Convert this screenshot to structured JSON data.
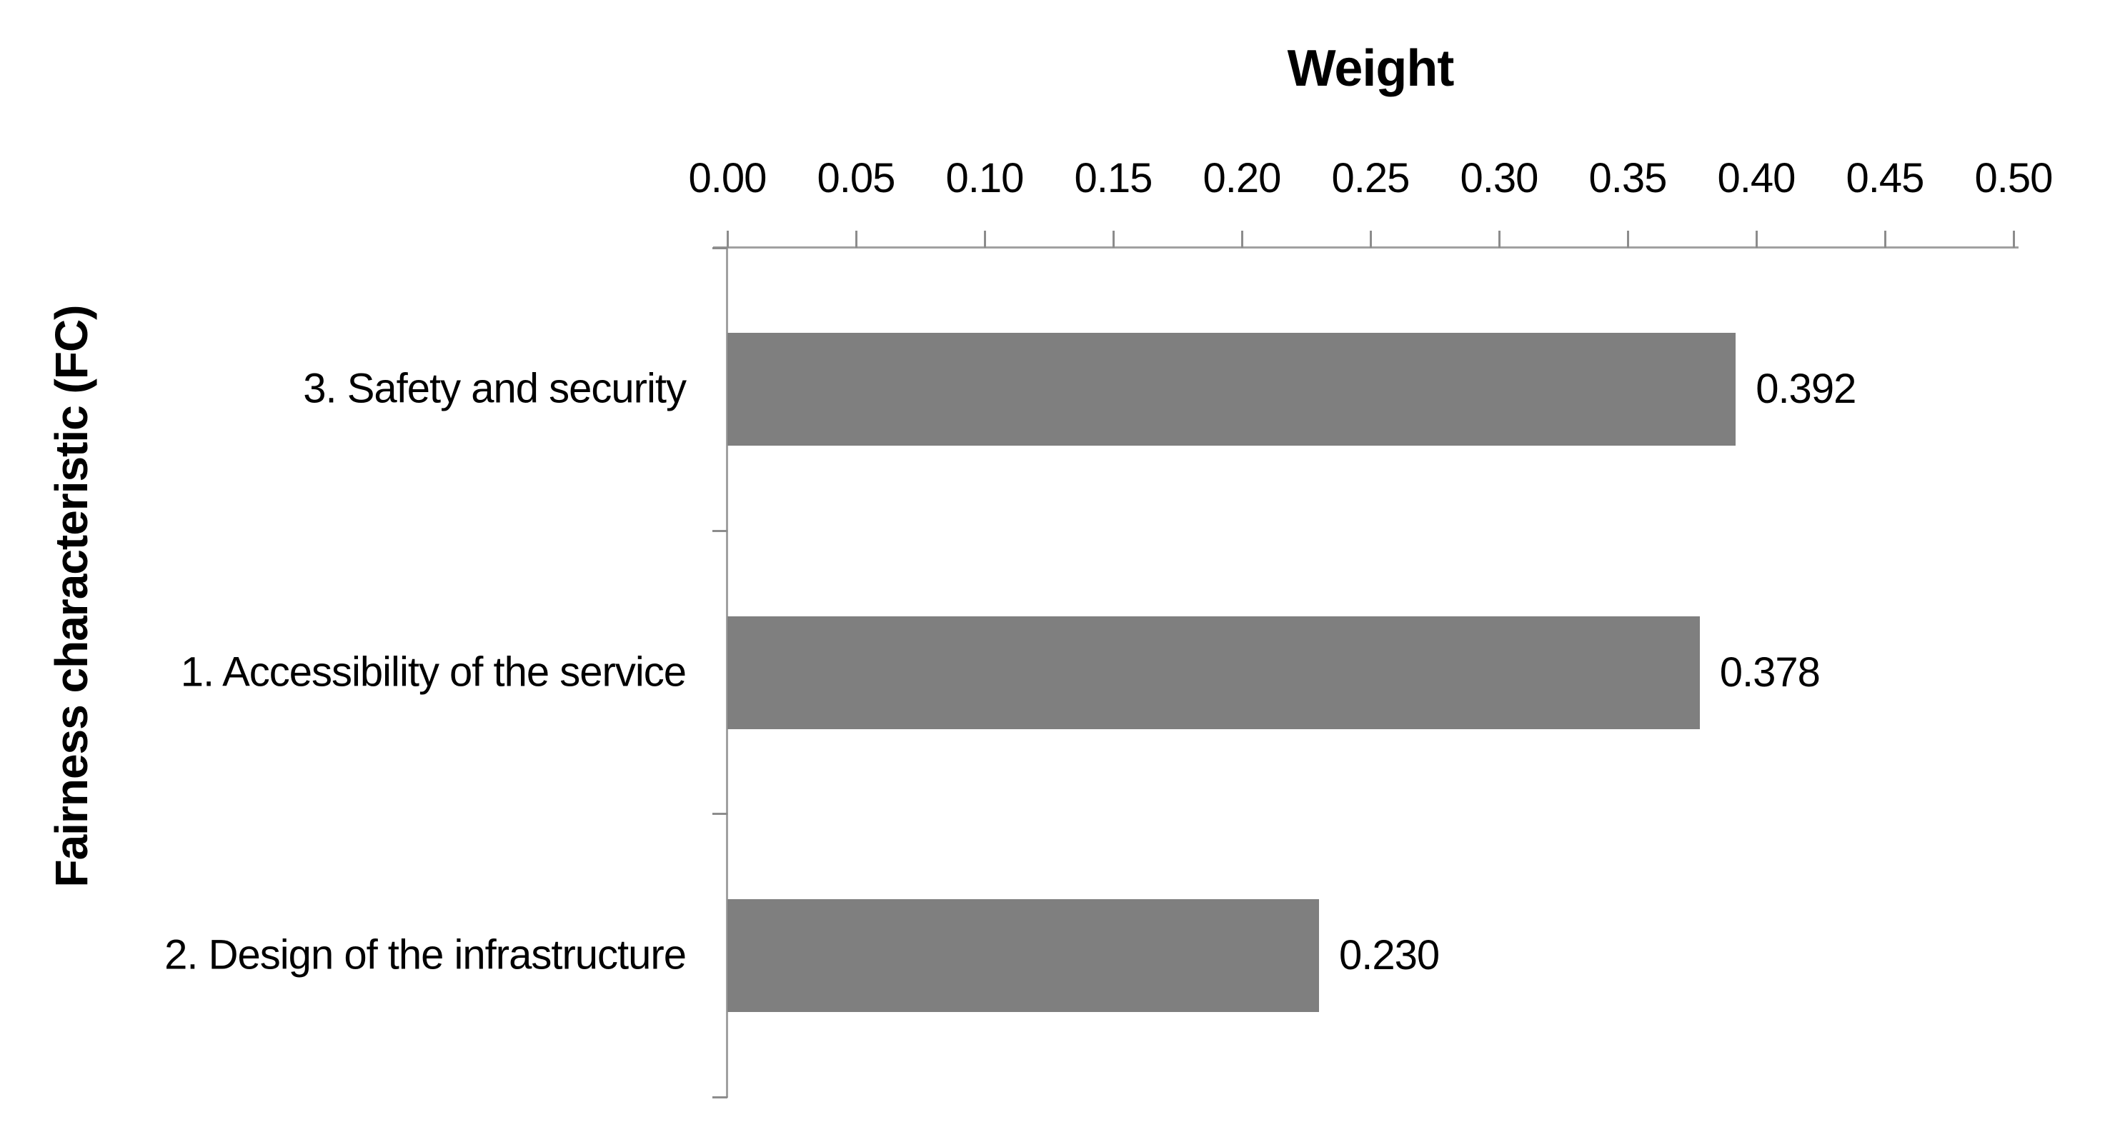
{
  "chart_data": {
    "type": "bar",
    "orientation": "horizontal",
    "title": "Weight",
    "xlabel": "Weight",
    "ylabel": "Fairness characteristic (FC)",
    "categories": [
      "3. Safety and security",
      "1. Accessibility of the service",
      "2. Design of the infrastructure"
    ],
    "values": [
      0.392,
      0.378,
      0.23
    ],
    "value_labels": [
      "0.392",
      "0.378",
      "0.230"
    ],
    "xlim": [
      0,
      0.5
    ],
    "x_ticks": [
      0.0,
      0.05,
      0.1,
      0.15,
      0.2,
      0.25,
      0.3,
      0.35,
      0.4,
      0.45,
      0.5
    ],
    "x_tick_labels": [
      "0.00",
      "0.05",
      "0.10",
      "0.15",
      "0.20",
      "0.25",
      "0.30",
      "0.35",
      "0.40",
      "0.45",
      "0.50"
    ],
    "grid": false,
    "legend": "none",
    "bar_color": "#7f7f7f"
  },
  "colors": {
    "bar": "#7f7f7f",
    "axis_line": "#a0a0a0",
    "tick_mark": "#8c8c8c",
    "text": "#000000",
    "background": "#ffffff"
  }
}
